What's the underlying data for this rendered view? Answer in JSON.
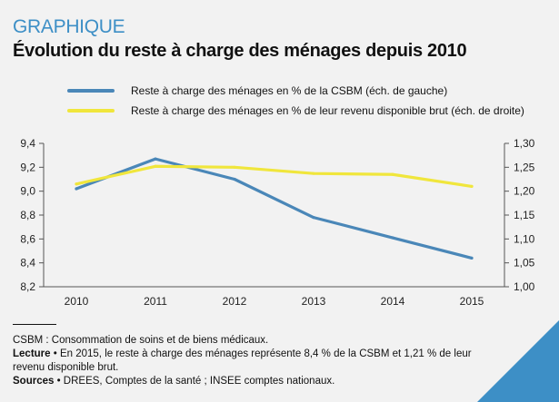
{
  "header": {
    "kicker": "GRAPHIQUE",
    "title": "Évolution du reste à charge des ménages depuis 2010"
  },
  "colors": {
    "series_blue": "#4a87b8",
    "series_yellow": "#f0e63c",
    "accent": "#3d8fc6",
    "axis": "#555555"
  },
  "chart_data": {
    "type": "line",
    "title": "Évolution du reste à charge des ménages depuis 2010",
    "x": [
      "2010",
      "2011",
      "2012",
      "2013",
      "2014",
      "2015"
    ],
    "series": [
      {
        "name": "Reste à charge des ménages en % de la CSBM (éch. de gauche)",
        "axis": "left",
        "color": "#4a87b8",
        "values": [
          9.02,
          9.27,
          9.1,
          8.78,
          8.61,
          8.44
        ]
      },
      {
        "name": "Reste à charge des ménages en % de leur revenu disponible brut (éch. de droite)",
        "axis": "right",
        "color": "#f0e63c",
        "values": [
          1.215,
          1.252,
          1.25,
          1.237,
          1.235,
          1.21
        ]
      }
    ],
    "y_left": {
      "lim": [
        8.2,
        9.4
      ],
      "ticks": [
        "8,2",
        "8,4",
        "8,6",
        "8,8",
        "9,0",
        "9,2",
        "9,4"
      ],
      "tick_values": [
        8.2,
        8.4,
        8.6,
        8.8,
        9.0,
        9.2,
        9.4
      ]
    },
    "y_right": {
      "lim": [
        1.0,
        1.3
      ],
      "ticks": [
        "1,00",
        "1,05",
        "1,10",
        "1,15",
        "1,20",
        "1,25",
        "1,30"
      ],
      "tick_values": [
        1.0,
        1.05,
        1.1,
        1.15,
        1.2,
        1.25,
        1.3
      ]
    },
    "grid": false,
    "legend": "top"
  },
  "notes": {
    "definition": "CSBM : Consommation de soins et de biens médicaux.",
    "lecture_label": "Lecture",
    "lecture_text": " • En 2015, le reste à charge des ménages représente 8,4 % de la CSBM et 1,21 % de leur revenu disponible brut.",
    "sources_label": "Sources",
    "sources_text": " • DREES, Comptes de la santé ; INSEE comptes nationaux."
  }
}
